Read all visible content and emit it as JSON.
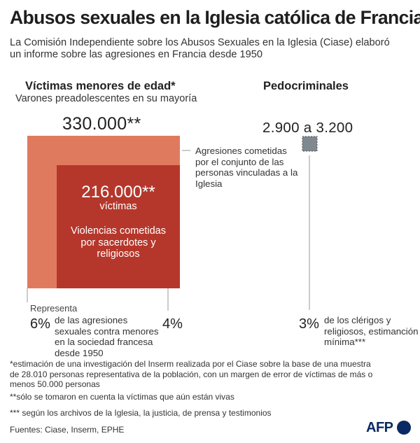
{
  "header": {
    "title": "Abusos sexuales en la Iglesia católica de Francia",
    "subtitle": "La Comisión Independiente sobre los Abusos Sexuales en la Iglesia (Ciase) elaboró un informe sobre las agresiones en Francia desde 1950"
  },
  "colors": {
    "outer_square": "#e07a5f",
    "inner_square": "#b5372b",
    "small_square": "#808890",
    "connector": "#999999",
    "brand": "#0a2a63"
  },
  "chart_data": {
    "type": "area",
    "panels": [
      {
        "heading": "Víctimas menores de edad*",
        "subheading": "Varones preadolescentes en su mayoría",
        "squares": [
          {
            "label": "330.000**",
            "value": 330000,
            "description": "Agresiones cometidas por el conjunto de las personas vinculadas a la Iglesia",
            "share_prefix": "Representa",
            "share": "6%",
            "share_text": "de las agresiones sexuales contra menores en la sociedad francesa desde 1950"
          },
          {
            "label": "216.000**",
            "value": 216000,
            "unit": "víctimas",
            "description": "Violencias cometidas por sacerdotes y religiosos",
            "share": "4%"
          }
        ]
      },
      {
        "heading": "Pedocriminales",
        "squares": [
          {
            "label": "2.900 a 3.200",
            "value_min": 2900,
            "value_max": 3200,
            "share": "3%",
            "share_text": "de los clérigos y religiosos, estimanción mínima***"
          }
        ]
      }
    ]
  },
  "footnotes": {
    "note1": "*estimación de una investigación del Inserm realizada por el Ciase sobre la base de una muestra de 28.010 personas representativa de la población, con un margen de error de víctimas de más o menos 50.000 personas",
    "note2": "**sólo se tomaron en cuenta la víctimas que aún están vivas",
    "note3": "*** según los archivos de la Iglesia, la justicia, de prensa y testimonios",
    "sources": "Fuentes: Ciase, Inserm, EPHE"
  },
  "logo": {
    "text": "AFP"
  }
}
